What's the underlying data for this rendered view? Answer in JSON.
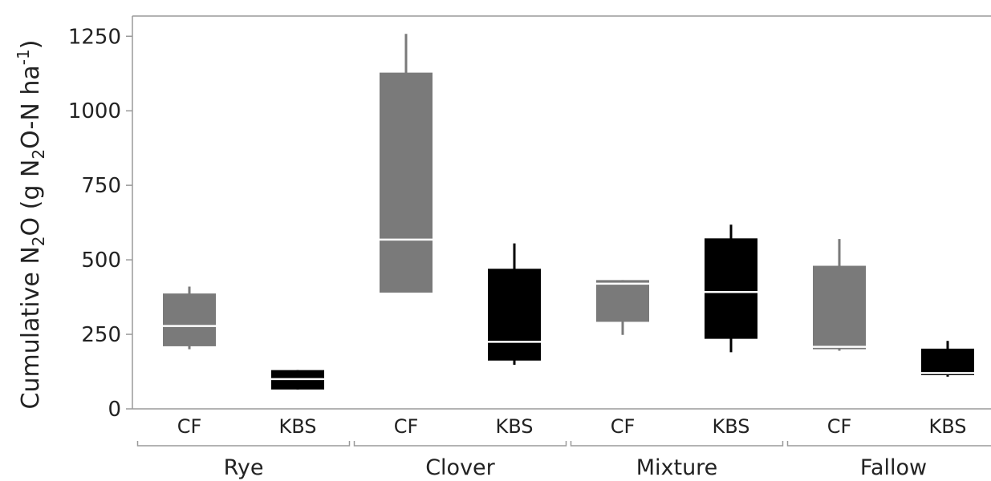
{
  "chart_data": {
    "type": "box",
    "ylabel_parts": [
      "Cumulative N",
      "2",
      "O (g N",
      "2",
      "O-N ha",
      "-1",
      ")"
    ],
    "ylim": [
      0,
      1300
    ],
    "yticks": [
      "0",
      "250",
      "500",
      "750",
      "1000",
      "1250"
    ],
    "ytick_values": [
      0,
      250,
      500,
      750,
      1000,
      1250
    ],
    "groups": [
      "Rye",
      "Clover",
      "Mixture",
      "Fallow"
    ],
    "sites": [
      "CF",
      "KBS"
    ],
    "colors": {
      "CF": "#7a7a7a",
      "KBS": "#000000",
      "median_line": "#ffffff"
    },
    "boxes": [
      {
        "group": "Rye",
        "site": "CF",
        "min": 200,
        "q1": 210,
        "median": 278,
        "q3": 387,
        "max": 410
      },
      {
        "group": "Rye",
        "site": "KBS",
        "min": 65,
        "q1": 65,
        "median": 100,
        "q3": 130,
        "max": 130
      },
      {
        "group": "Clover",
        "site": "CF",
        "min": 390,
        "q1": 390,
        "median": 568,
        "q3": 1128,
        "max": 1258
      },
      {
        "group": "Clover",
        "site": "KBS",
        "min": 148,
        "q1": 162,
        "median": 225,
        "q3": 470,
        "max": 555
      },
      {
        "group": "Mixture",
        "site": "CF",
        "min": 248,
        "q1": 292,
        "median": 420,
        "q3": 432,
        "max": 432
      },
      {
        "group": "Mixture",
        "site": "KBS",
        "min": 190,
        "q1": 235,
        "median": 392,
        "q3": 572,
        "max": 618
      },
      {
        "group": "Fallow",
        "site": "CF",
        "min": 195,
        "q1": 200,
        "median": 208,
        "q3": 480,
        "max": 570
      },
      {
        "group": "Fallow",
        "site": "KBS",
        "min": 108,
        "q1": 113,
        "median": 120,
        "q3": 202,
        "max": 228
      }
    ]
  }
}
